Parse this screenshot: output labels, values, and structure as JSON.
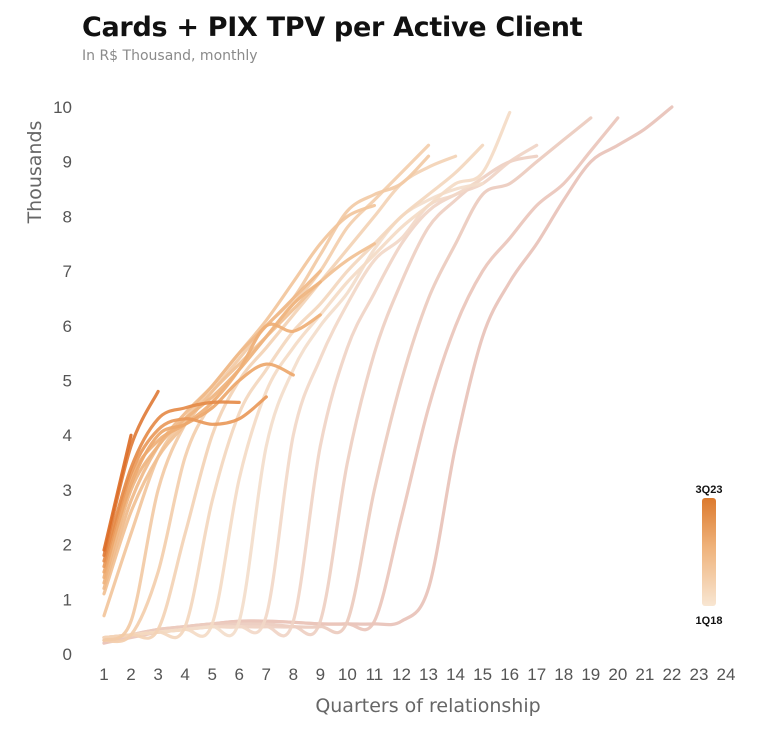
{
  "chart_data": {
    "type": "line",
    "title": "Cards + PIX TPV per Active Client",
    "subtitle": "In R$ Thousand, monthly",
    "xlabel": "Quarters of relationship",
    "ylabel": "Thousands",
    "xlim": [
      1,
      24
    ],
    "ylim": [
      0,
      10
    ],
    "x_ticks": [
      "1",
      "2",
      "3",
      "4",
      "5",
      "6",
      "7",
      "8",
      "9",
      "10",
      "11",
      "12",
      "13",
      "14",
      "15",
      "16",
      "17",
      "18",
      "19",
      "20",
      "21",
      "22",
      "23",
      "24"
    ],
    "y_ticks": [
      "0",
      "1",
      "2",
      "3",
      "4",
      "5",
      "6",
      "7",
      "8",
      "9",
      "10"
    ],
    "grid": false,
    "legend": {
      "type": "color-gradient",
      "position": "right",
      "top_label": "3Q23",
      "bottom_label": "1Q18"
    },
    "colors": {
      "newest": "#dc7a2e",
      "mid": "#f2c7a0",
      "oldest": "#e8c2b8",
      "light": "#f8e6d2"
    },
    "series": [
      {
        "values": [
          0.2,
          0.35,
          0.45,
          0.5,
          0.55,
          0.6,
          0.6,
          0.58,
          0.55,
          0.55,
          0.55,
          0.6,
          1.2,
          3.8,
          5.8,
          6.8,
          7.5,
          8.3,
          9.0,
          9.3,
          9.6,
          10.0
        ]
      },
      {
        "values": [
          0.2,
          0.3,
          0.4,
          0.5,
          0.55,
          0.6,
          0.6,
          0.58,
          0.55,
          0.55,
          0.6,
          2.5,
          4.5,
          6.0,
          7.0,
          7.6,
          8.2,
          8.6,
          9.2,
          9.8
        ]
      },
      {
        "values": [
          0.25,
          0.35,
          0.45,
          0.5,
          0.55,
          0.55,
          0.55,
          0.5,
          0.5,
          0.6,
          3.0,
          5.0,
          6.5,
          7.5,
          8.4,
          8.6,
          9.0,
          9.4,
          9.8
        ]
      },
      {
        "values": [
          0.25,
          0.35,
          0.4,
          0.45,
          0.5,
          0.5,
          0.5,
          0.5,
          0.6,
          3.5,
          5.5,
          6.8,
          7.8,
          8.3,
          8.7,
          9.0,
          9.1
        ]
      },
      {
        "values": [
          0.3,
          0.35,
          0.4,
          0.45,
          0.5,
          0.5,
          0.5,
          0.6,
          3.8,
          5.6,
          6.6,
          7.5,
          8.1,
          8.4,
          8.6,
          9.0,
          9.3
        ]
      },
      {
        "values": [
          0.3,
          0.35,
          0.4,
          0.45,
          0.5,
          0.5,
          0.7,
          4.0,
          5.4,
          6.4,
          7.2,
          7.6,
          8.2,
          8.4,
          8.7
        ]
      },
      {
        "values": [
          0.3,
          0.35,
          0.4,
          0.45,
          0.5,
          0.6,
          3.8,
          5.2,
          6.0,
          6.6,
          7.4,
          8.0,
          8.3,
          8.5,
          8.6
        ]
      },
      {
        "values": [
          0.3,
          0.35,
          0.4,
          0.45,
          0.55,
          3.2,
          4.8,
          5.6,
          6.2,
          6.8,
          7.3,
          7.8,
          8.2,
          8.6,
          8.8,
          9.9
        ]
      },
      {
        "values": [
          0.3,
          0.35,
          0.4,
          0.5,
          2.8,
          4.4,
          5.2,
          5.9,
          6.4,
          7.0,
          7.5,
          8.0,
          8.4,
          8.8,
          9.3
        ]
      },
      {
        "values": [
          0.3,
          0.35,
          0.45,
          2.2,
          4.0,
          5.0,
          5.6,
          6.2,
          6.8,
          7.4,
          8.0,
          8.6,
          8.9,
          9.1
        ]
      },
      {
        "values": [
          0.25,
          0.35,
          1.5,
          3.6,
          4.6,
          5.2,
          5.8,
          6.4,
          7.0,
          7.8,
          8.3,
          8.8,
          9.3
        ]
      },
      {
        "values": [
          0.25,
          0.6,
          3.0,
          4.2,
          4.8,
          5.4,
          6.0,
          6.5,
          7.3,
          8.1,
          8.4,
          8.6,
          9.1
        ]
      },
      {
        "values": [
          0.7,
          2.2,
          3.6,
          4.3,
          4.9,
          5.5,
          6.1,
          6.8,
          7.5,
          8.0,
          8.2
        ]
      },
      {
        "values": [
          1.1,
          2.6,
          3.6,
          4.2,
          4.8,
          5.3,
          5.8,
          6.3,
          6.8,
          7.2,
          7.5
        ]
      },
      {
        "values": [
          1.2,
          2.8,
          3.8,
          4.4,
          4.9,
          5.5,
          6.0,
          6.5,
          7.0
        ]
      },
      {
        "values": [
          1.3,
          3.0,
          3.8,
          4.3,
          4.7,
          5.2,
          5.8,
          6.4,
          6.8
        ]
      },
      {
        "values": [
          1.4,
          3.2,
          3.9,
          4.2,
          4.6,
          5.2,
          6.0,
          5.9,
          6.2
        ]
      },
      {
        "values": [
          1.5,
          3.1,
          4.0,
          4.2,
          4.5,
          5.0,
          5.3,
          5.1
        ]
      },
      {
        "values": [
          1.6,
          3.3,
          4.1,
          4.3,
          4.2,
          4.3,
          4.7
        ]
      },
      {
        "values": [
          1.7,
          3.4,
          4.3,
          4.5,
          4.6,
          4.6
        ]
      },
      {
        "values": [
          1.8,
          3.8,
          4.8
        ]
      },
      {
        "values": [
          1.9,
          4.0
        ]
      }
    ]
  }
}
